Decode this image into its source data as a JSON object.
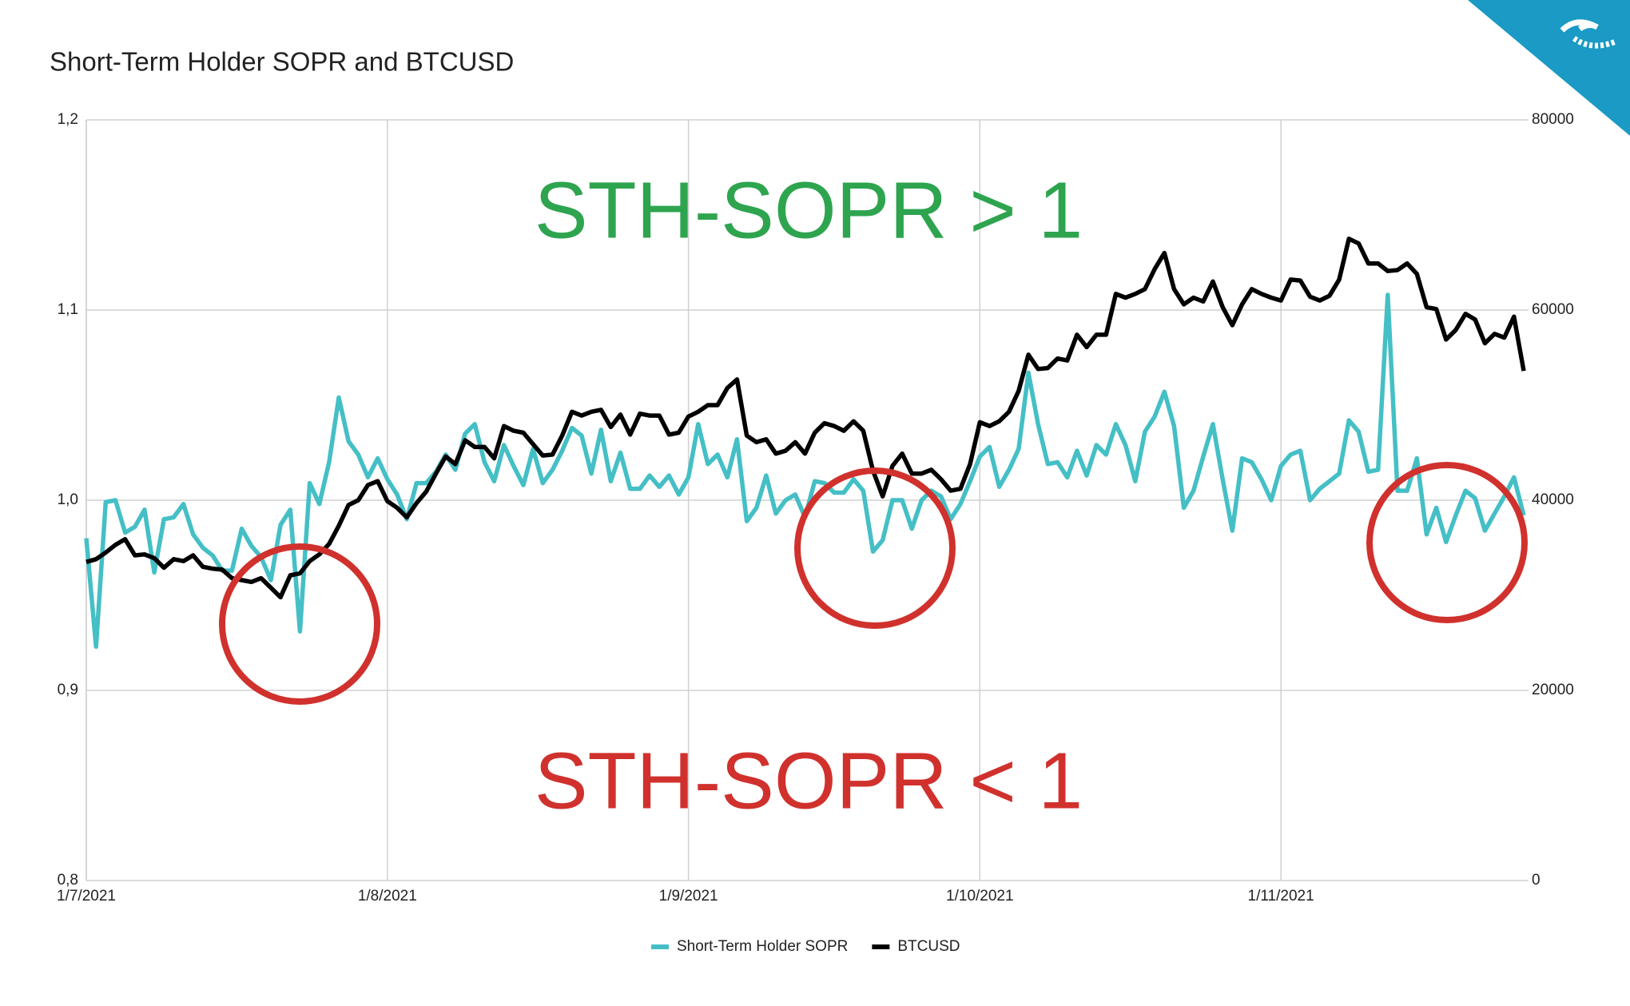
{
  "chart_data": {
    "type": "line",
    "title": "Short-Term Holder SOPR and BTCUSD",
    "categories": [
      "1/7/2021",
      null,
      null,
      null,
      null,
      null,
      null,
      null,
      null,
      null,
      null,
      null,
      null,
      null,
      null,
      null,
      null,
      null,
      null,
      null,
      null,
      null,
      null,
      null,
      null,
      null,
      null,
      null,
      null,
      null,
      null,
      "1/8/2021",
      null,
      null,
      null,
      null,
      null,
      null,
      null,
      null,
      null,
      null,
      null,
      null,
      null,
      null,
      null,
      null,
      null,
      null,
      null,
      null,
      null,
      null,
      null,
      null,
      null,
      null,
      null,
      null,
      null,
      null,
      "1/9/2021",
      null,
      null,
      null,
      null,
      null,
      null,
      null,
      null,
      null,
      null,
      null,
      null,
      null,
      null,
      null,
      null,
      null,
      null,
      null,
      null,
      null,
      null,
      null,
      null,
      null,
      null,
      null,
      null,
      null,
      "1/10/2021",
      null,
      null,
      null,
      null,
      null,
      null,
      null,
      null,
      null,
      null,
      null,
      null,
      null,
      null,
      null,
      null,
      null,
      null,
      null,
      null,
      null,
      null,
      null,
      null,
      null,
      null,
      null,
      null,
      null,
      null,
      "1/11/2021",
      null,
      null,
      null,
      null,
      null,
      null,
      null,
      null,
      null,
      null,
      null,
      null,
      null,
      null,
      null,
      null,
      null,
      null,
      null,
      null,
      null,
      null,
      null,
      null,
      null
    ],
    "series": [
      {
        "name": "Short-Term Holder SOPR",
        "color": "#45bfc6",
        "values": [
          0.98,
          0.923,
          0.999,
          1.0,
          0.983,
          0.986,
          0.995,
          0.962,
          0.99,
          0.991,
          0.998,
          0.982,
          0.975,
          0.971,
          0.963,
          0.963,
          0.985,
          0.976,
          0.97,
          0.958,
          0.987,
          0.995,
          0.931,
          1.009,
          0.998,
          1.02,
          1.054,
          1.031,
          1.024,
          1.012,
          1.022,
          1.011,
          1.003,
          0.99,
          1.009,
          1.009,
          1.015,
          1.024,
          1.016,
          1.035,
          1.04,
          1.02,
          1.01,
          1.029,
          1.018,
          1.008,
          1.027,
          1.009,
          1.016,
          1.026,
          1.038,
          1.034,
          1.014,
          1.037,
          1.01,
          1.025,
          1.006,
          1.006,
          1.013,
          1.007,
          1.013,
          1.003,
          1.012,
          1.04,
          1.019,
          1.024,
          1.012,
          1.032,
          0.989,
          0.996,
          1.013,
          0.993,
          1.0,
          1.003,
          0.991,
          1.01,
          1.009,
          1.004,
          1.004,
          1.011,
          1.005,
          0.973,
          0.979,
          1.0,
          1.0,
          0.985,
          1.0,
          1.005,
          1.002,
          0.99,
          0.998,
          1.01,
          1.023,
          1.028,
          1.007,
          1.016,
          1.027,
          1.067,
          1.04,
          1.019,
          1.02,
          1.012,
          1.026,
          1.013,
          1.029,
          1.024,
          1.04,
          1.029,
          1.01,
          1.036,
          1.044,
          1.057,
          1.039,
          0.996,
          1.005,
          1.023,
          1.04,
          1.011,
          0.984,
          1.022,
          1.02,
          1.011,
          1.0,
          1.018,
          1.024,
          1.026,
          1.0,
          1.006,
          1.01,
          1.014,
          1.042,
          1.036,
          1.015,
          1.016,
          1.108,
          1.005,
          1.005,
          1.022,
          0.982,
          0.996,
          0.978,
          0.992,
          1.005,
          1.001,
          0.984,
          0.993,
          1.002,
          1.012,
          0.992
        ]
      },
      {
        "name": "BTCUSD",
        "color": "#000000",
        "axis": "y2",
        "values": [
          33500,
          33800,
          34500,
          35300,
          35900,
          34200,
          34300,
          33900,
          32900,
          33800,
          33600,
          34200,
          33000,
          32800,
          32700,
          31800,
          31600,
          31400,
          31800,
          30800,
          29800,
          32100,
          32300,
          33600,
          34300,
          35400,
          37300,
          39500,
          40000,
          41600,
          42000,
          39900,
          39200,
          38200,
          39700,
          40900,
          42800,
          44600,
          43800,
          46300,
          45600,
          45600,
          44400,
          47800,
          47300,
          47100,
          45900,
          44700,
          44800,
          46800,
          49300,
          48900,
          49300,
          49500,
          47700,
          49000,
          46900,
          49100,
          48900,
          48900,
          46900,
          47100,
          48800,
          49300,
          50000,
          50000,
          51800,
          52700,
          46800,
          46100,
          46400,
          44900,
          45200,
          46100,
          44900,
          47100,
          48100,
          47800,
          47300,
          48300,
          47300,
          43100,
          40400,
          43600,
          44900,
          42800,
          42800,
          43200,
          42200,
          41000,
          41200,
          43800,
          48200,
          47800,
          48300,
          49300,
          51500,
          55300,
          53800,
          53900,
          54900,
          54700,
          57400,
          56100,
          57400,
          57400,
          61700,
          61300,
          61700,
          62200,
          64300,
          66000,
          62200,
          60600,
          61300,
          60900,
          63000,
          60300,
          58400,
          60600,
          62200,
          61700,
          61300,
          61000,
          63200,
          63100,
          61400,
          61000,
          61500,
          63200,
          67500,
          67000,
          64900,
          64900,
          64100,
          64200,
          64900,
          63800,
          60300,
          60100,
          56900,
          57900,
          59600,
          59000,
          56500,
          57500,
          57100,
          59300,
          53600
        ]
      }
    ],
    "ylim": [
      0.8,
      1.2
    ],
    "yticks": [
      {
        "value": 0.8,
        "label": "0,8"
      },
      {
        "value": 0.9,
        "label": "0,9"
      },
      {
        "value": 1.0,
        "label": "1,0"
      },
      {
        "value": 1.1,
        "label": "1,1"
      },
      {
        "value": 1.2,
        "label": "1,2"
      }
    ],
    "y2lim": [
      0,
      80000
    ],
    "y2ticks": [
      0,
      20000,
      40000,
      60000,
      80000
    ],
    "grid": true,
    "legend": "bottom",
    "annotations": [
      {
        "text": "STH-SOPR > 1",
        "color": "#2ea44f"
      },
      {
        "text": "STH-SOPR < 1",
        "color": "#d0312d"
      }
    ]
  }
}
